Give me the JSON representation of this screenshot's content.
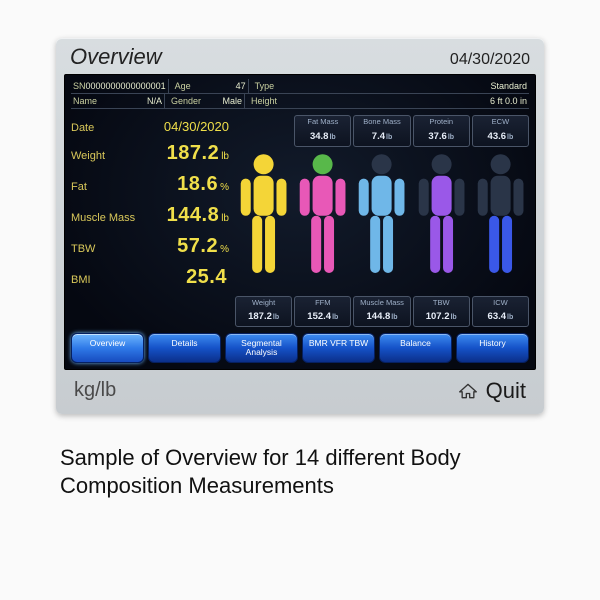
{
  "titlebar": {
    "title": "Overview",
    "date": "04/30/2020"
  },
  "info": {
    "row1": {
      "sn_lbl": "SN",
      "sn_val": "0000000000000001",
      "age_lbl": "Age",
      "age_val": "47",
      "type_lbl": "Type",
      "type_val": "Standard"
    },
    "row2": {
      "name_lbl": "Name",
      "name_val": "N/A",
      "gender_lbl": "Gender",
      "gender_val": "Male",
      "height_lbl": "Height",
      "height_val": "6   ft   0.0   in"
    }
  },
  "metrics": [
    {
      "label": "Date",
      "value": "04/30/2020",
      "unit": ""
    },
    {
      "label": "Weight",
      "value": "187.2",
      "unit": "lb"
    },
    {
      "label": "Fat",
      "value": "18.6",
      "unit": "%"
    },
    {
      "label": "Muscle Mass",
      "value": "144.8",
      "unit": "lb"
    },
    {
      "label": "TBW",
      "value": "57.2",
      "unit": "%"
    },
    {
      "label": "BMI",
      "value": "25.4",
      "unit": ""
    }
  ],
  "top_chips": [
    {
      "label": "",
      "value": "",
      "unit": ""
    },
    {
      "label": "Fat Mass",
      "value": "34.8",
      "unit": "lb"
    },
    {
      "label": "Bone Mass",
      "value": "7.4",
      "unit": "lb"
    },
    {
      "label": "Protein",
      "value": "37.6",
      "unit": "lb"
    },
    {
      "label": "ECW",
      "value": "43.6",
      "unit": "lb"
    }
  ],
  "bottom_chips": [
    {
      "label": "Weight",
      "value": "187.2",
      "unit": "lb"
    },
    {
      "label": "FFM",
      "value": "152.4",
      "unit": "lb"
    },
    {
      "label": "Muscle Mass",
      "value": "144.8",
      "unit": "lb"
    },
    {
      "label": "TBW",
      "value": "107.2",
      "unit": "lb"
    },
    {
      "label": "ICW",
      "value": "63.4",
      "unit": "lb"
    }
  ],
  "bodies": [
    {
      "color": "#f4d537",
      "head": true,
      "torso": true,
      "arms": true,
      "legs": true
    },
    {
      "color": "#e858b7",
      "head": false,
      "torso": true,
      "arms": true,
      "legs": true,
      "head_color": "#58b84a"
    },
    {
      "color": "#6fb7e8",
      "head": false,
      "torso": true,
      "arms": true,
      "legs": true
    },
    {
      "color": "#9a58e8",
      "head": false,
      "torso": true,
      "arms": false,
      "legs": true
    },
    {
      "color": "#3a58e8",
      "head": false,
      "torso": false,
      "arms": false,
      "legs": true
    }
  ],
  "nav": [
    {
      "label": "Overview",
      "active": true
    },
    {
      "label": "Details",
      "active": false
    },
    {
      "label": "Segmental Analysis",
      "active": false
    },
    {
      "label": "BMR VFR TBW",
      "active": false
    },
    {
      "label": "Balance",
      "active": false
    },
    {
      "label": "History",
      "active": false
    }
  ],
  "footer": {
    "kglb": "kg/lb",
    "quit": "Quit"
  },
  "caption": "Sample of Overview for 14 different Body Composition Measurements",
  "colors": {
    "metric_label": "#d9c85a",
    "metric_value": "#f0df4a",
    "screen_bg": "#0a1222",
    "device_bg": "#cdd2d6"
  }
}
